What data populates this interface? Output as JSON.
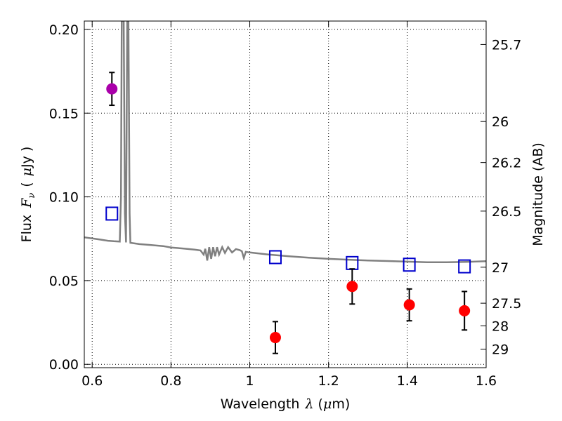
{
  "chart_data": {
    "type": "scatter",
    "xlabel": {
      "text": "Wavelength",
      "symbol": "λ",
      "unit_open": "(",
      "unit_mu": "μ",
      "unit_rest": "m)"
    },
    "ylabel": {
      "text": "Flux",
      "symbol": "F",
      "sub": "ν",
      "unit_open": "(",
      "unit_mu": "μ",
      "unit_rest": "Jy )"
    },
    "y2label": "Magnitude (AB)",
    "xlim": [
      0.58,
      1.6
    ],
    "ylim": [
      -0.002,
      0.205
    ],
    "x_ticks": [
      {
        "value": 0.6,
        "label": "0.6"
      },
      {
        "value": 0.8,
        "label": "0.8"
      },
      {
        "value": 1.0,
        "label": "1"
      },
      {
        "value": 1.2,
        "label": "1.2"
      },
      {
        "value": 1.4,
        "label": "1.4"
      },
      {
        "value": 1.6,
        "label": "1.6"
      }
    ],
    "y_ticks": [
      {
        "value": 0.0,
        "label": "0.00"
      },
      {
        "value": 0.05,
        "label": "0.05"
      },
      {
        "value": 0.1,
        "label": "0.10"
      },
      {
        "value": 0.15,
        "label": "0.15"
      },
      {
        "value": 0.2,
        "label": "0.20"
      }
    ],
    "y2_ticks": [
      {
        "label": "25.7",
        "flux": 0.191
      },
      {
        "label": "26",
        "flux": 0.145
      },
      {
        "label": "26.2",
        "flux": 0.1205
      },
      {
        "label": "26.5",
        "flux": 0.0915
      },
      {
        "label": "27",
        "flux": 0.058
      },
      {
        "label": "27.5",
        "flux": 0.0365
      },
      {
        "label": "28",
        "flux": 0.023
      },
      {
        "label": "29",
        "flux": 0.009
      }
    ],
    "grid": true,
    "model_spectrum": {
      "color": "#808080",
      "points": [
        [
          0.58,
          0.0758
        ],
        [
          0.6,
          0.0752
        ],
        [
          0.62,
          0.0745
        ],
        [
          0.64,
          0.0738
        ],
        [
          0.655,
          0.0735
        ],
        [
          0.67,
          0.0733
        ],
        [
          0.673,
          0.1
        ],
        [
          0.675,
          0.205
        ],
        [
          0.68,
          0.205
        ],
        [
          0.683,
          0.09
        ],
        [
          0.686,
          0.0728
        ],
        [
          0.689,
          0.205
        ],
        [
          0.692,
          0.205
        ],
        [
          0.695,
          0.09
        ],
        [
          0.697,
          0.0726
        ],
        [
          0.72,
          0.0718
        ],
        [
          0.75,
          0.0712
        ],
        [
          0.78,
          0.0706
        ],
        [
          0.8,
          0.0698
        ],
        [
          0.83,
          0.0692
        ],
        [
          0.86,
          0.0685
        ],
        [
          0.875,
          0.068
        ],
        [
          0.883,
          0.0655
        ],
        [
          0.887,
          0.069
        ],
        [
          0.892,
          0.062
        ],
        [
          0.897,
          0.07
        ],
        [
          0.902,
          0.063
        ],
        [
          0.907,
          0.07
        ],
        [
          0.912,
          0.0645
        ],
        [
          0.917,
          0.07
        ],
        [
          0.922,
          0.0655
        ],
        [
          0.93,
          0.07
        ],
        [
          0.937,
          0.0665
        ],
        [
          0.945,
          0.07
        ],
        [
          0.955,
          0.0668
        ],
        [
          0.965,
          0.0688
        ],
        [
          0.975,
          0.0682
        ],
        [
          0.98,
          0.0675
        ],
        [
          0.985,
          0.0635
        ],
        [
          0.99,
          0.0672
        ],
        [
          1.0,
          0.0668
        ],
        [
          1.05,
          0.0655
        ],
        [
          1.1,
          0.0645
        ],
        [
          1.15,
          0.0637
        ],
        [
          1.2,
          0.063
        ],
        [
          1.25,
          0.0625
        ],
        [
          1.3,
          0.062
        ],
        [
          1.35,
          0.0617
        ],
        [
          1.4,
          0.0613
        ],
        [
          1.45,
          0.061
        ],
        [
          1.5,
          0.061
        ],
        [
          1.55,
          0.0612
        ],
        [
          1.6,
          0.0616
        ]
      ]
    },
    "series": [
      {
        "marker": "square-open",
        "color": "#0000cc",
        "points": [
          {
            "x": 0.65,
            "y": 0.09
          },
          {
            "x": 1.065,
            "y": 0.064
          },
          {
            "x": 1.26,
            "y": 0.0605
          },
          {
            "x": 1.405,
            "y": 0.0595
          },
          {
            "x": 1.545,
            "y": 0.0585
          }
        ]
      },
      {
        "marker": "circle-filled",
        "color": "#ff0000",
        "points": [
          {
            "x": 1.065,
            "y": 0.016,
            "err": 0.0095
          },
          {
            "x": 1.26,
            "y": 0.0465,
            "err": 0.0105
          },
          {
            "x": 1.405,
            "y": 0.0355,
            "err": 0.0095
          },
          {
            "x": 1.545,
            "y": 0.032,
            "err": 0.0115
          }
        ]
      },
      {
        "marker": "circle-filled",
        "color": "#aa00aa",
        "points": [
          {
            "x": 0.65,
            "y": 0.1645,
            "err": 0.0098
          }
        ]
      }
    ]
  }
}
